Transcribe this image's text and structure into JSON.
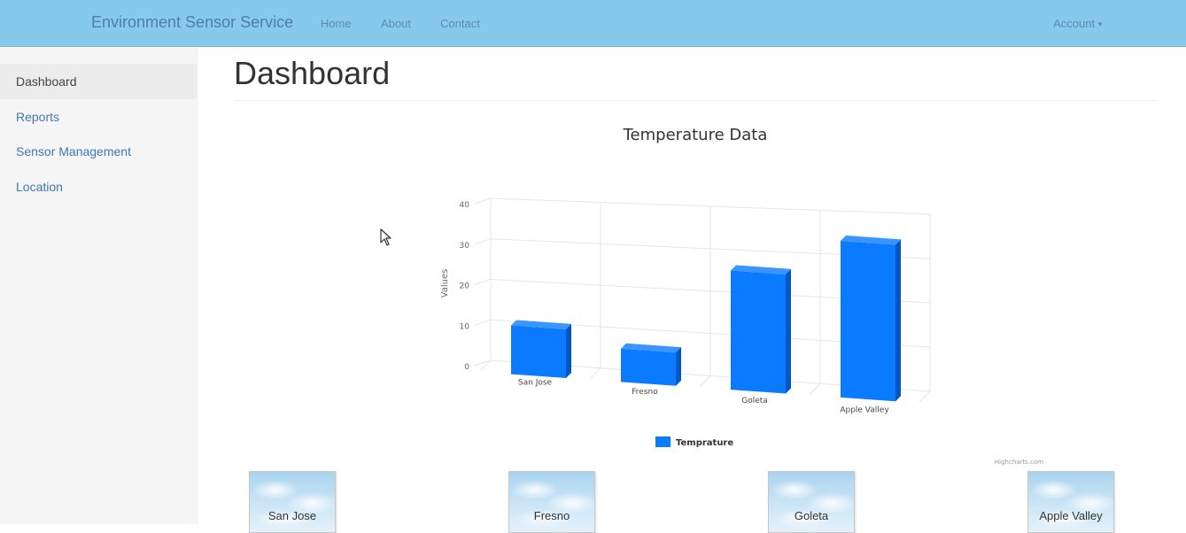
{
  "navbar": {
    "brand": "Environment Sensor Service",
    "links": [
      "Home",
      "About",
      "Contact"
    ],
    "account": "Account"
  },
  "sidebar": {
    "items": [
      {
        "label": "Dashboard",
        "active": true
      },
      {
        "label": "Reports"
      },
      {
        "label": "Sensor Management"
      },
      {
        "label": "Location"
      }
    ]
  },
  "main": {
    "title": "Dashboard"
  },
  "chart_data": {
    "type": "bar",
    "title": "Temperature Data",
    "ylabel": "Values",
    "xlabel": "",
    "categories": [
      "San Jose",
      "Fresno",
      "Goleta",
      "Apple Valley"
    ],
    "series": [
      {
        "name": "Temprature",
        "values": [
          12,
          8,
          28,
          36
        ],
        "color": "#0a7bff"
      }
    ],
    "ylim": [
      0,
      40
    ],
    "yticks": [
      0,
      10,
      20,
      30,
      40
    ],
    "grid": true,
    "legend": "bottom-center",
    "credit": "Highcharts.com",
    "style": "3d"
  },
  "tiles": [
    "San Jose",
    "Fresno",
    "Goleta",
    "Apple Valley"
  ],
  "icons": {
    "cursor": "mouse-pointer-icon",
    "caret": "caret-down-icon",
    "tile_image": "sky-clouds-image"
  },
  "colors": {
    "navbar": "#87c9ea",
    "bar": "#0a7bff",
    "link": "#3f78b5"
  }
}
